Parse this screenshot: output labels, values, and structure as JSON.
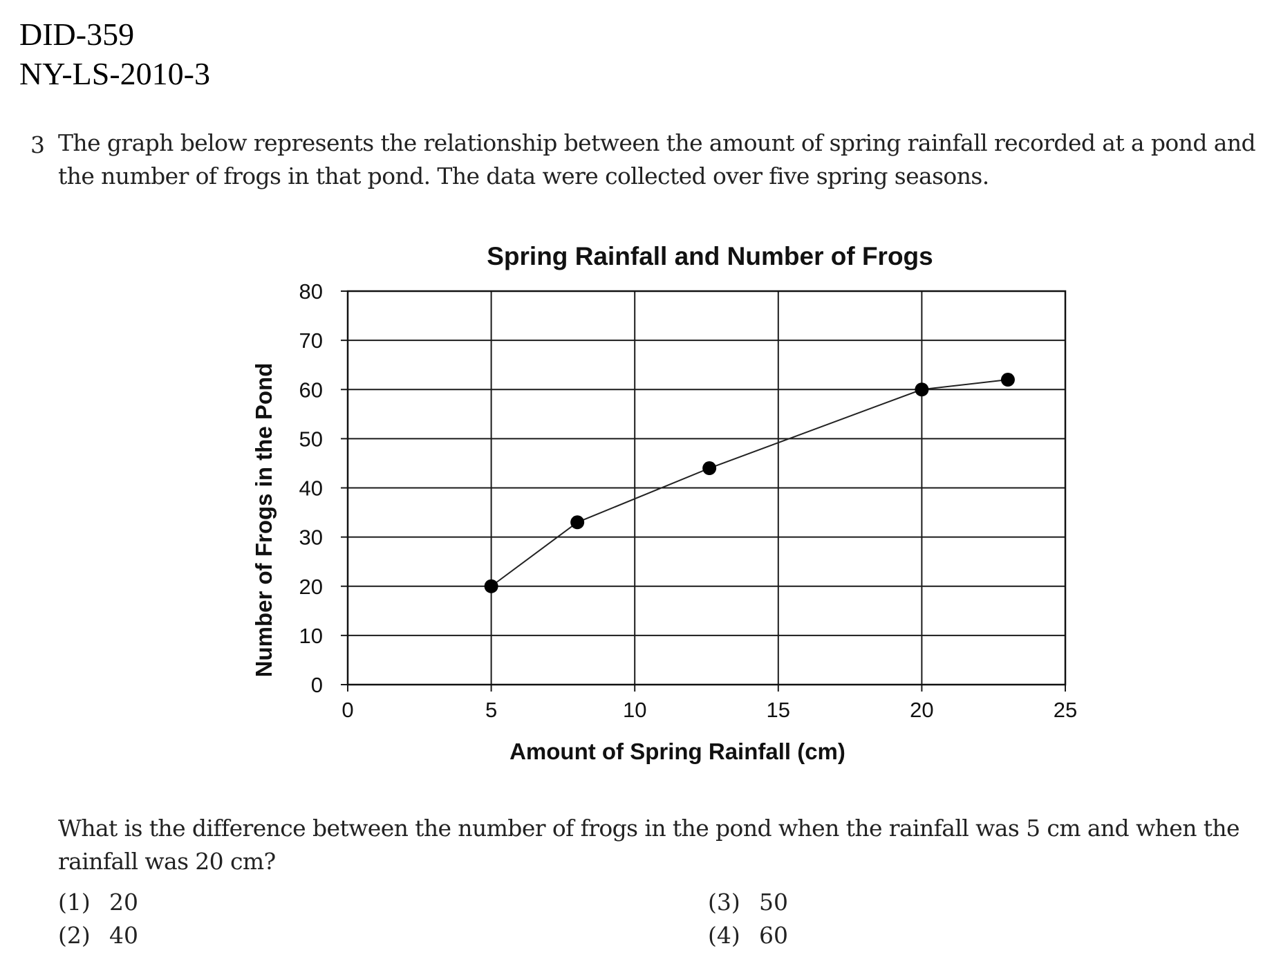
{
  "header": {
    "doc_id": "DID-359",
    "source_code": "NY-LS-2010-3"
  },
  "question": {
    "number": "3",
    "stem": "The graph below represents the relationship between the amount of spring rainfall recorded at a pond and the number of frogs in that pond. The data were collected over five spring seasons.",
    "prompt": "What is the difference between the number of frogs in the pond when the rainfall was 5 cm and when the rainfall was 20 cm?",
    "choices": [
      {
        "num": "(1)",
        "text": "20"
      },
      {
        "num": "(2)",
        "text": "40"
      },
      {
        "num": "(3)",
        "text": "50"
      },
      {
        "num": "(4)",
        "text": "60"
      }
    ]
  },
  "chart_data": {
    "type": "line",
    "title": "Spring Rainfall and Number of Frogs",
    "xlabel": "Amount of Spring Rainfall (cm)",
    "ylabel": "Number of Frogs in the Pond",
    "xlim": [
      0,
      25
    ],
    "ylim": [
      0,
      80
    ],
    "xticks": [
      0,
      5,
      10,
      15,
      20,
      25
    ],
    "yticks": [
      0,
      10,
      20,
      30,
      40,
      50,
      60,
      70,
      80
    ],
    "grid": true,
    "x": [
      5,
      8,
      12.6,
      20,
      23
    ],
    "y": [
      20,
      33,
      44,
      60,
      62
    ],
    "line_color": "#222222",
    "marker_color": "#000000"
  }
}
